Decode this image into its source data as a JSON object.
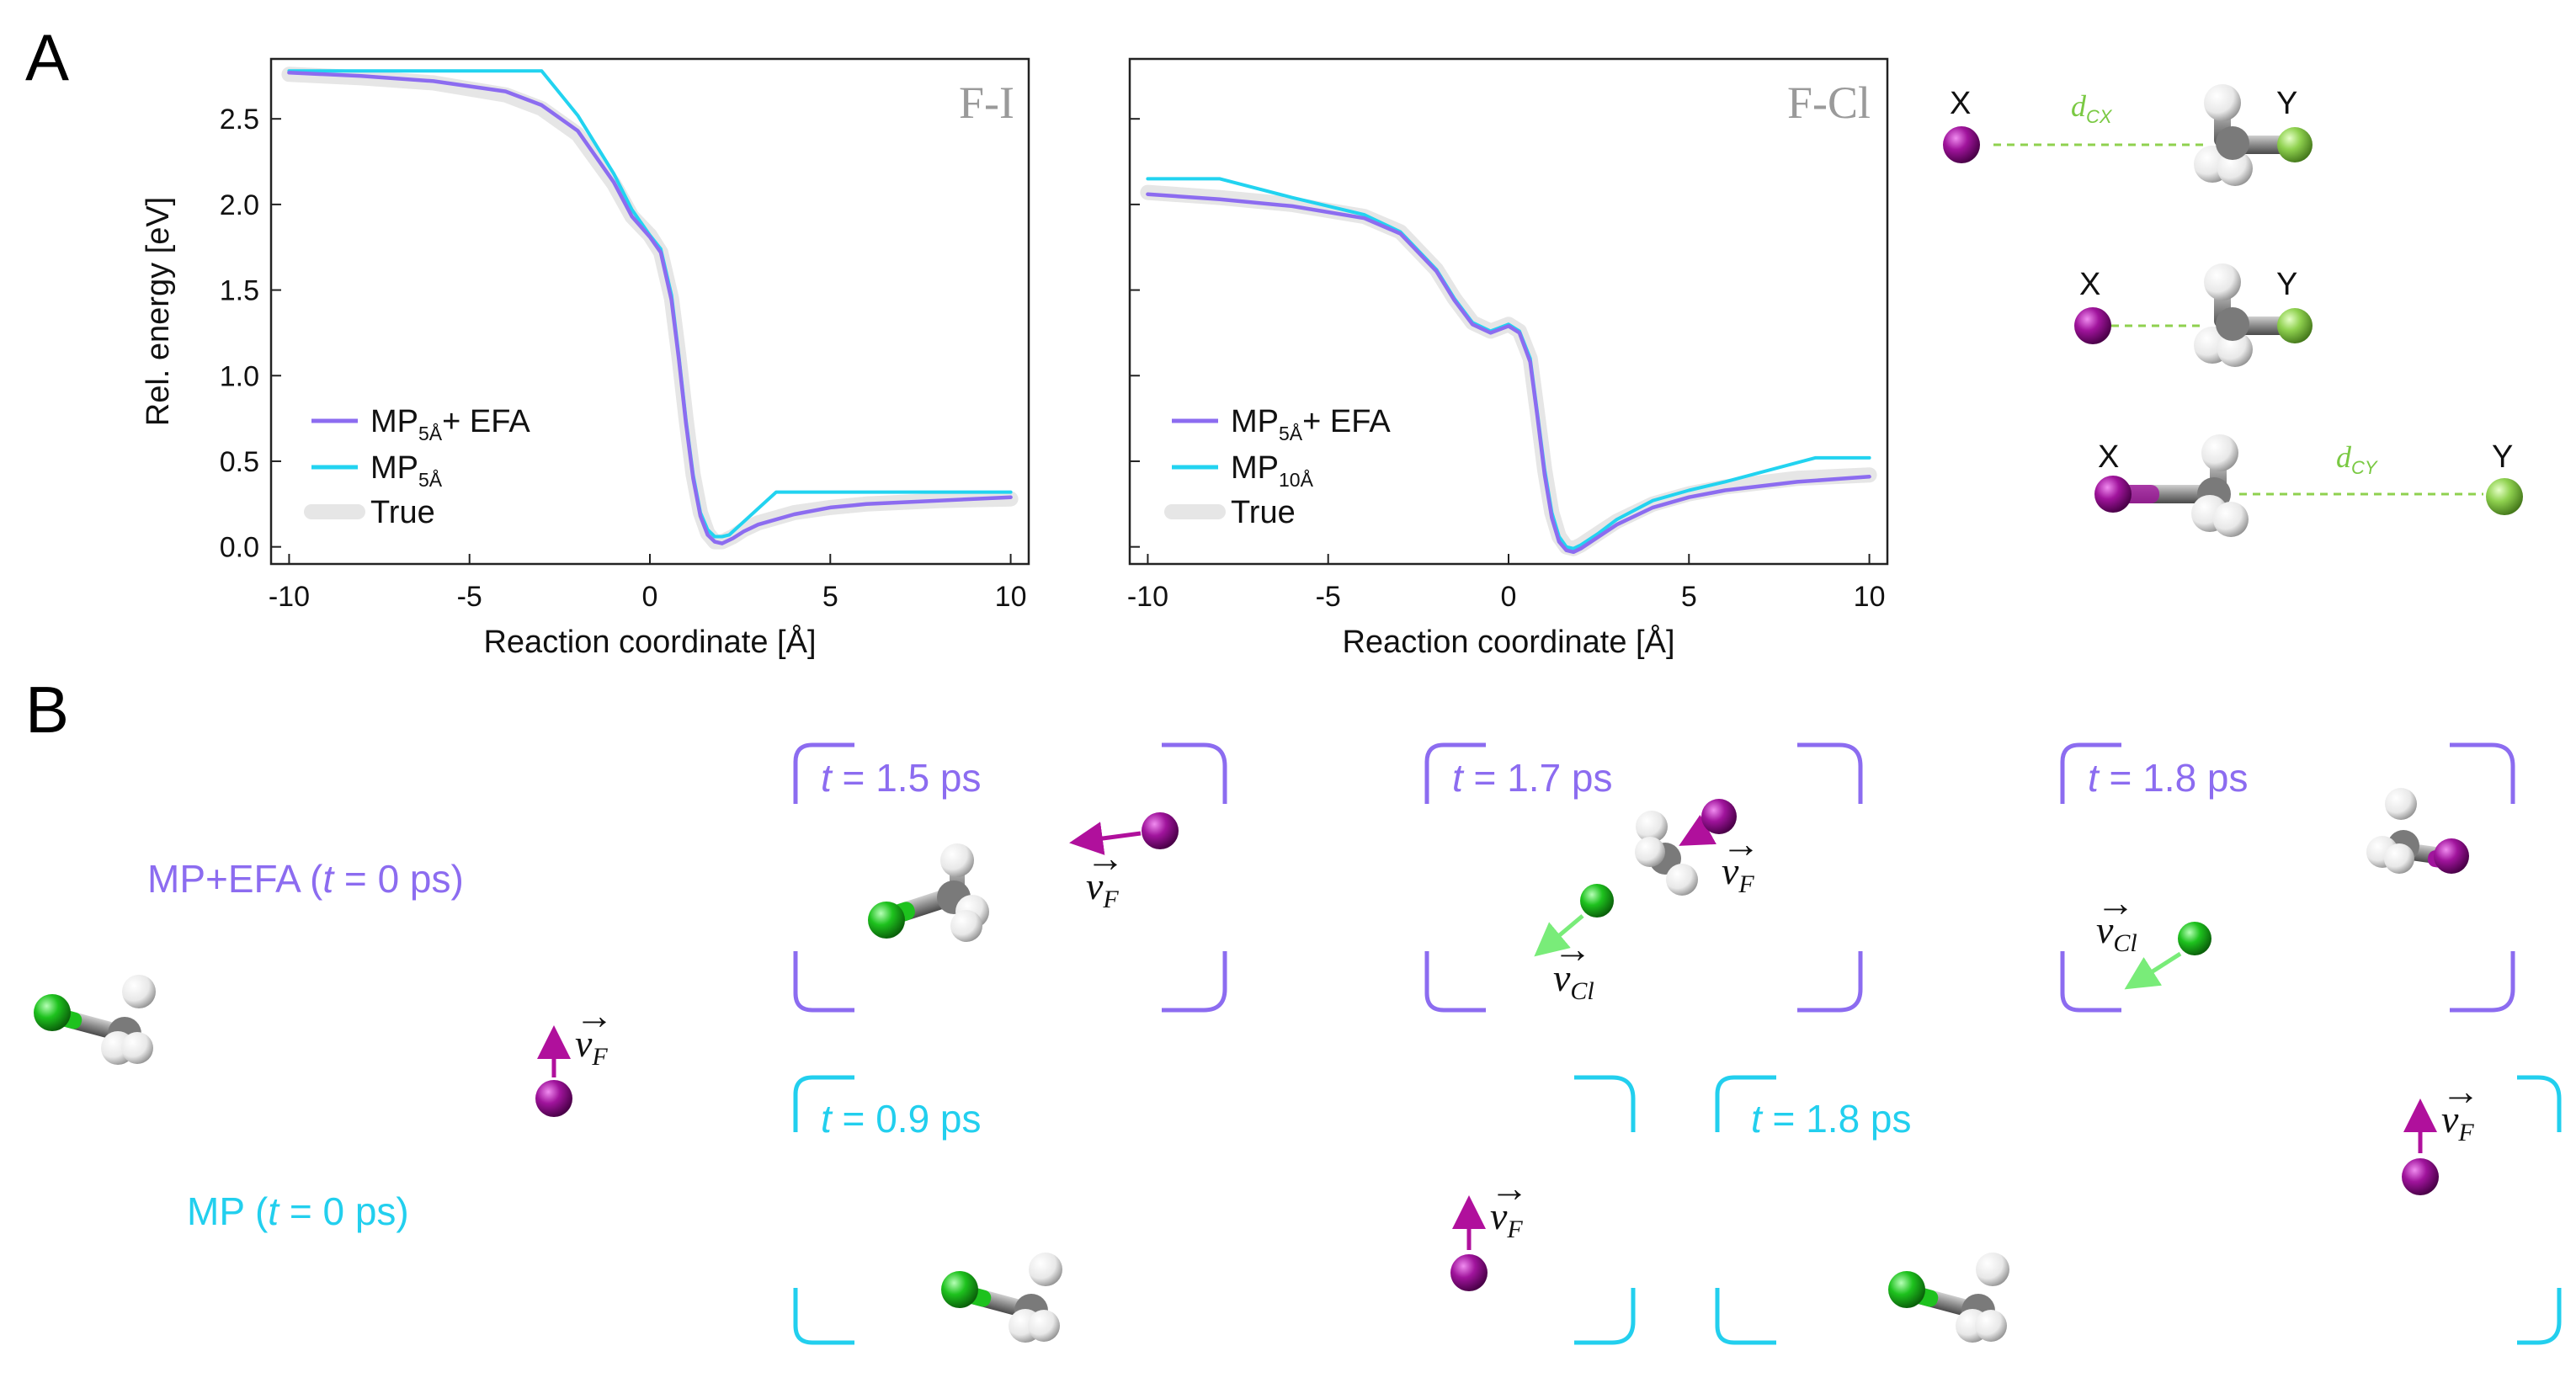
{
  "panels": {
    "a": "A",
    "b": "B"
  },
  "chart_data": [
    {
      "type": "line",
      "title": "F-I",
      "xlabel": "Reaction coordinate [Å]",
      "ylabel": "Rel. energy [eV]",
      "xlim": [
        -10.5,
        10.5
      ],
      "ylim": [
        -0.1,
        2.85
      ],
      "xticks": [
        "-10",
        "-5",
        "0",
        "5",
        "10"
      ],
      "yticks": [
        "0.0",
        "0.5",
        "1.0",
        "1.5",
        "2.0",
        "2.5"
      ],
      "legend_position": "lower-left",
      "series": [
        {
          "key": "true",
          "name": "True",
          "color": "#e6e6e6",
          "x": [
            -10,
            -8,
            -6,
            -4,
            -3,
            -2,
            -1,
            -0.5,
            0,
            0.3,
            0.6,
            0.8,
            1.0,
            1.2,
            1.4,
            1.6,
            1.8,
            2.0,
            2.3,
            2.6,
            3.0,
            4.0,
            5.0,
            6.0,
            8.0,
            10.0
          ],
          "y": [
            2.76,
            2.74,
            2.71,
            2.64,
            2.56,
            2.41,
            2.12,
            1.93,
            1.82,
            1.72,
            1.45,
            1.12,
            0.75,
            0.42,
            0.2,
            0.08,
            0.03,
            0.03,
            0.06,
            0.1,
            0.14,
            0.2,
            0.23,
            0.25,
            0.27,
            0.28
          ]
        },
        {
          "key": "mp_efa",
          "name": "MP",
          "name_sub": "5Å",
          "name_suffix": "+ EFA",
          "color": "#8c6cf0",
          "x": [
            -10,
            -8,
            -6,
            -4,
            -3,
            -2,
            -1,
            -0.5,
            0,
            0.3,
            0.6,
            0.8,
            1.0,
            1.2,
            1.4,
            1.6,
            1.8,
            2.0,
            2.3,
            2.6,
            3.0,
            4.0,
            5.0,
            6.0,
            8.0,
            10.0
          ],
          "y": [
            2.77,
            2.75,
            2.72,
            2.66,
            2.58,
            2.43,
            2.13,
            1.93,
            1.81,
            1.72,
            1.44,
            1.1,
            0.72,
            0.4,
            0.18,
            0.07,
            0.03,
            0.02,
            0.05,
            0.09,
            0.13,
            0.19,
            0.23,
            0.25,
            0.27,
            0.29
          ]
        },
        {
          "key": "mp",
          "name": "MP",
          "name_sub": "5Å",
          "name_suffix": "",
          "color": "#22d3f0",
          "x": [
            -10,
            -3,
            -2,
            -1,
            -0.5,
            0,
            0.3,
            0.6,
            0.8,
            1.0,
            1.2,
            1.4,
            1.6,
            1.8,
            2.0,
            2.2,
            3.5,
            10.0
          ],
          "y": [
            2.78,
            2.78,
            2.52,
            2.18,
            1.97,
            1.82,
            1.74,
            1.47,
            1.12,
            0.74,
            0.42,
            0.2,
            0.1,
            0.06,
            0.06,
            0.07,
            0.32,
            0.32
          ]
        }
      ]
    },
    {
      "type": "line",
      "title": "F-Cl",
      "xlabel": "Reaction coordinate [Å]",
      "ylabel": "",
      "xlim": [
        -10.5,
        10.5
      ],
      "ylim": [
        -0.1,
        2.85
      ],
      "xticks": [
        "-10",
        "-5",
        "0",
        "5",
        "10"
      ],
      "legend_position": "lower-left",
      "series": [
        {
          "key": "true",
          "name": "True",
          "color": "#e6e6e6",
          "x": [
            -10,
            -8,
            -6,
            -4,
            -3,
            -2,
            -1.5,
            -1,
            -0.5,
            0,
            0.3,
            0.6,
            0.8,
            1.0,
            1.2,
            1.4,
            1.6,
            1.8,
            2.0,
            2.5,
            3.0,
            4.0,
            5.0,
            6.0,
            8.0,
            10.0
          ],
          "y": [
            2.07,
            2.04,
            2.0,
            1.93,
            1.84,
            1.62,
            1.45,
            1.31,
            1.26,
            1.3,
            1.26,
            1.1,
            0.78,
            0.45,
            0.2,
            0.06,
            0.0,
            -0.01,
            0.01,
            0.08,
            0.15,
            0.25,
            0.31,
            0.35,
            0.4,
            0.42
          ]
        },
        {
          "key": "mp_efa",
          "name": "MP",
          "name_sub": "5Å",
          "name_suffix": "+ EFA",
          "color": "#8c6cf0",
          "x": [
            -10,
            -8,
            -6,
            -4,
            -3,
            -2,
            -1.5,
            -1,
            -0.5,
            0,
            0.3,
            0.6,
            0.8,
            1.0,
            1.2,
            1.4,
            1.6,
            1.8,
            2.0,
            2.5,
            3.0,
            4.0,
            5.0,
            6.0,
            8.0,
            10.0
          ],
          "y": [
            2.06,
            2.03,
            1.99,
            1.92,
            1.83,
            1.61,
            1.44,
            1.3,
            1.25,
            1.29,
            1.25,
            1.08,
            0.76,
            0.42,
            0.17,
            0.03,
            -0.02,
            -0.03,
            -0.01,
            0.06,
            0.13,
            0.23,
            0.29,
            0.33,
            0.38,
            0.41
          ]
        },
        {
          "key": "mp",
          "name": "MP",
          "name_sub": "10Å",
          "name_suffix": "",
          "color": "#22d3f0",
          "x": [
            -10,
            -8,
            -6,
            -4,
            -3,
            -2,
            -1.5,
            -1,
            -0.5,
            0,
            0.3,
            0.6,
            0.8,
            1.0,
            1.2,
            1.4,
            1.6,
            1.8,
            2.0,
            2.5,
            3.0,
            4.0,
            5.0,
            6.0,
            8.5,
            10.0
          ],
          "y": [
            2.15,
            2.15,
            2.04,
            1.94,
            1.84,
            1.62,
            1.45,
            1.31,
            1.26,
            1.3,
            1.26,
            1.1,
            0.78,
            0.45,
            0.2,
            0.06,
            0.0,
            -0.01,
            0.01,
            0.08,
            0.16,
            0.27,
            0.33,
            0.38,
            0.52,
            0.52
          ]
        }
      ]
    }
  ],
  "schematic": {
    "x_label": "X",
    "y_label": "Y",
    "d_cx": "d",
    "d_cx_sub": "CX",
    "d_cy": "d",
    "d_cy_sub": "CY"
  },
  "md": {
    "mp_efa_label": "MP+EFA (",
    "mp_label": "MP (",
    "t0_text": "t",
    "t0_value": " = 0 ps)",
    "snapshots": [
      {
        "t": "t",
        "value": " = 1.5 ps"
      },
      {
        "t": "t",
        "value": " = 1.7 ps"
      },
      {
        "t": "t",
        "value": " = 1.8 ps"
      },
      {
        "t": "t",
        "value": " = 0.9 ps"
      },
      {
        "t": "t",
        "value": " = 1.8 ps"
      }
    ],
    "velocity_symbol": "v",
    "velocity_F": "F",
    "velocity_Cl": "Cl"
  },
  "colors": {
    "purple_atom": "#a0149c",
    "green_atom": "#1ec21e",
    "light_green_atom": "#8fd14f",
    "carbon": "#808080",
    "hydrogen": "#f2f2f2",
    "mp_efa": "#8c6cf0",
    "mp": "#22d3f0",
    "vel_purple": "#b0109c",
    "vel_green": "#79ec79"
  }
}
